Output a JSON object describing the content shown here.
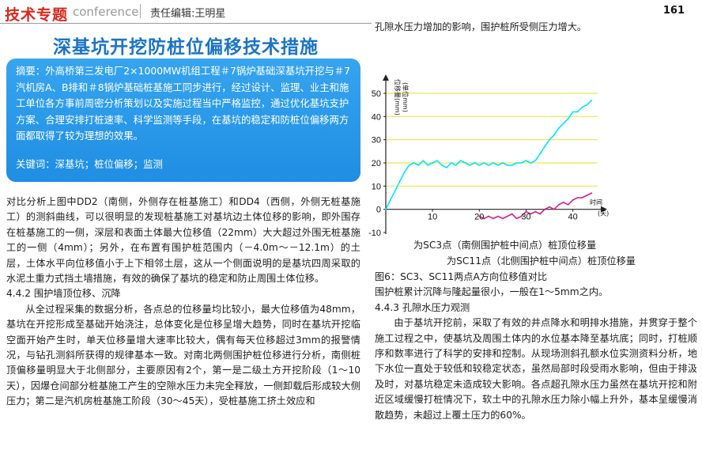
{
  "header": {
    "brand": "技术专题",
    "brand_en": "conference",
    "editor": "责任编辑:王明星",
    "page_number": "161"
  },
  "article": {
    "title": "深基坑开挖防桩位偏移技术措施",
    "abstract": "摘要：外高桥第三发电厂2×1000MW机组工程＃7锅炉基础深基坑开挖与＃7汽机房A、B排和＃8锅炉基础桩基施工同步进行，经过设计、监理、业主和施工单位各方事前周密分析策划以及实施过程当中严格监控，通过优化基坑支护方案、合理安排打桩速率、科学监测等手段，在基坑的稳定和防桩位偏移两方面都取得了较为理想的效果。",
    "keywords": "关键词：深基坑；桩位偏移；监测"
  },
  "left_column": {
    "para1": "对比分析上图中DD2（南侧，外侧存在桩基施工）和DD4（西侧，外侧无桩基施工）的测斜曲线，可以很明显的发现桩基施工对基坑边土体位移的影响，即外围存在桩基施工的一侧，深层和表面土体最大位移值（22mm）大大超过外围无桩基施工的一侧（4mm）；另外，在布置有围护桩范围内（－4.0m～－12.1m）的土层，土体水平向位移值小于上下相邻土层，这从一个侧面说明的是基坑四周采取的水泥土重力式挡土墙措施，有效的确保了基坑的稳定和防止周围土体位移。",
    "heading": "4.4.2 围护墙顶位移、沉降",
    "para2": "从全过程采集的数据分析，各点总的位移量均比较小，最大位移值为48mm，基坑在开挖形成至基础开始浇注，总体变化是位移呈增大趋势，同时在基坑开挖临空面开始产生时，单天位移量增大速率比较大，偶有每天位移超过3mm的报警情况，与钻孔测斜所获得的规律基本一致。对南北两侧围护桩位移进行分析，南侧桩顶偏移量明显大于北侧部分，主要原因有2个，第一是二级土方开挖阶段（1～10天），因爆仓间部分桩基施工产生的空隙水压力未完全释放，一侧卸载后形成较大侧压力；第二是汽机房桩基施工阶段（30～45天），受桩基施工挤土效应和"
  },
  "right_column": {
    "top_text": "孔隙水压力增加的影响，围护桩所受侧压力增大。",
    "chart_caption_1": "为SC3点（南侧围护桩中间点）桩顶位移量",
    "chart_caption_2": "为SC11点（北侧围护桩中间点）桩顶位移量",
    "figure_caption": "图6：SC3、SC11两点A方向位移值对比",
    "para1": "围护桩累计沉降与隆起量很小，一般在1～5mm之内。",
    "heading": "4.4.3 孔隙水压力观测",
    "para2": "由于基坑开挖前，采取了有效的井点降水和明排水措施，并贯穿于整个施工过程之中，使基坑及周围土体内的水位基本降至基坑底；同时，打桩顺序和数率进行了科学的安排和控制。从现场测斜孔额水位实测资料分析，地下水位一直处于较低和较稳定状态，虽然局部时段受雨水影响，但由于排汲及时，对基坑稳定未造成较大影响。各点超孔隙水压力虽然在基坑开挖和附近区域缓慢打桩情况下，软土中的孔隙水压力除小幅上升外，基本呈缓慢消散趋势，未超过上覆土压力的60%。"
  },
  "chart_data": {
    "type": "line",
    "ylabel": "位移量(mm)",
    "ylabel_unit": "(单位mm)",
    "xlabel": "时间",
    "xlabel_unit": "(天)",
    "ylim": [
      -10,
      50
    ],
    "xlim": [
      0,
      47
    ],
    "yticks": [
      -10,
      0,
      10,
      20,
      30,
      40,
      50
    ],
    "xticks": [
      10,
      20,
      30,
      40
    ],
    "gridlines_y": [
      10,
      20,
      30,
      40,
      50
    ],
    "series": [
      {
        "name": "SC3",
        "color": "#00e5ff",
        "points": [
          [
            0,
            0
          ],
          [
            1,
            4
          ],
          [
            2,
            8
          ],
          [
            3,
            12
          ],
          [
            4,
            16
          ],
          [
            5,
            19
          ],
          [
            6,
            20
          ],
          [
            7,
            19
          ],
          [
            8,
            21
          ],
          [
            9,
            19
          ],
          [
            10,
            20
          ],
          [
            11,
            21
          ],
          [
            12,
            19
          ],
          [
            13,
            18
          ],
          [
            14,
            20
          ],
          [
            15,
            19
          ],
          [
            16,
            21
          ],
          [
            17,
            20
          ],
          [
            18,
            19
          ],
          [
            19,
            20
          ],
          [
            20,
            19
          ],
          [
            21,
            20
          ],
          [
            22,
            19
          ],
          [
            23,
            20
          ],
          [
            24,
            19
          ],
          [
            25,
            20
          ],
          [
            26,
            19
          ],
          [
            27,
            19
          ],
          [
            28,
            20
          ],
          [
            29,
            20
          ],
          [
            30,
            21
          ],
          [
            31,
            20
          ],
          [
            32,
            21
          ],
          [
            33,
            24
          ],
          [
            34,
            27
          ],
          [
            35,
            30
          ],
          [
            36,
            32
          ],
          [
            37,
            35
          ],
          [
            38,
            37
          ],
          [
            39,
            39
          ],
          [
            40,
            42
          ],
          [
            41,
            42
          ],
          [
            42,
            44
          ],
          [
            43,
            45
          ],
          [
            44,
            47
          ]
        ]
      },
      {
        "name": "SC11",
        "color": "#d0208c",
        "points": [
          [
            20,
            -3
          ],
          [
            21,
            -4
          ],
          [
            22,
            -3
          ],
          [
            23,
            -4
          ],
          [
            24,
            -3
          ],
          [
            25,
            -4
          ],
          [
            26,
            -3
          ],
          [
            27,
            -2
          ],
          [
            28,
            -4
          ],
          [
            29,
            -3
          ],
          [
            30,
            -1
          ],
          [
            31,
            -2
          ],
          [
            32,
            -1
          ],
          [
            33,
            -2
          ],
          [
            34,
            0
          ],
          [
            35,
            1
          ],
          [
            36,
            0
          ],
          [
            37,
            2
          ],
          [
            38,
            3
          ],
          [
            39,
            2
          ],
          [
            40,
            4
          ],
          [
            41,
            5
          ],
          [
            42,
            5
          ],
          [
            43,
            6
          ],
          [
            44,
            7
          ]
        ]
      }
    ]
  }
}
